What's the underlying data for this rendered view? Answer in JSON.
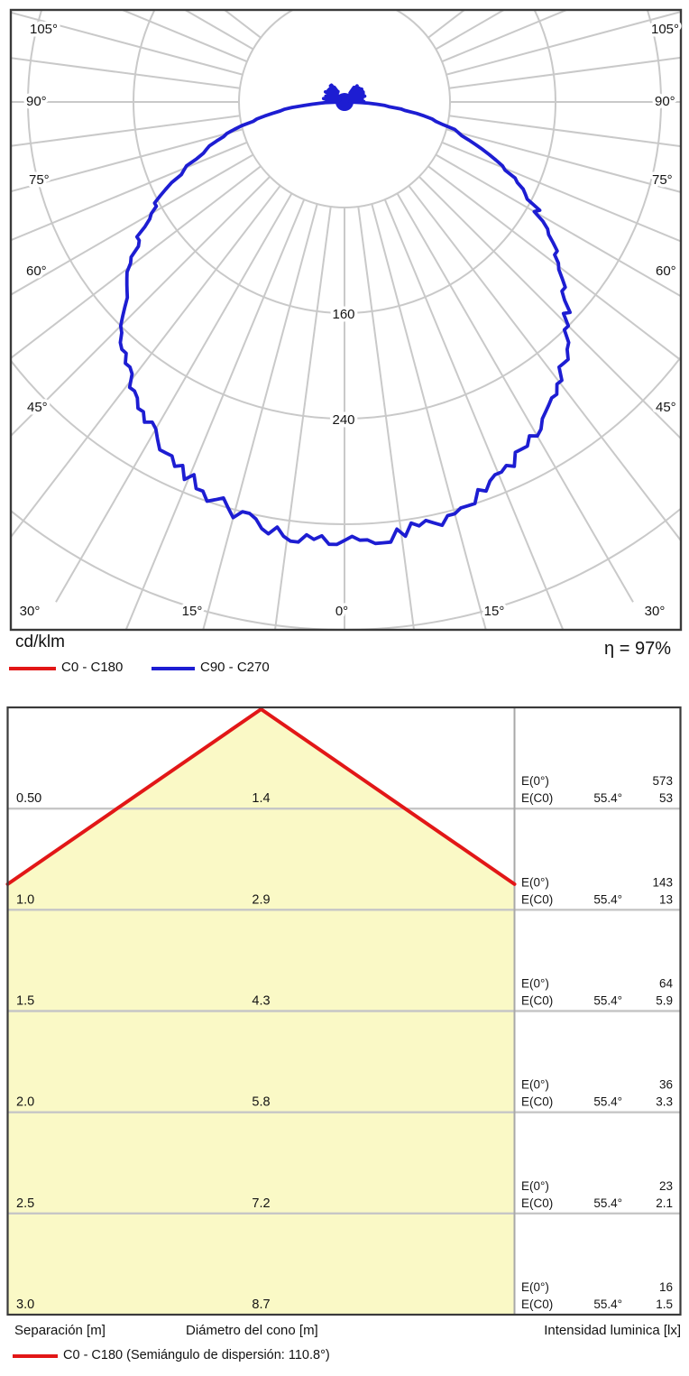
{
  "polar_section": {
    "unit_label": "cd/klm",
    "efficiency_label": "η = 97%",
    "legend": [
      {
        "label": "C0 - C180",
        "color": "#e21717"
      },
      {
        "label": "C90 - C270",
        "color": "#1d1dd2"
      }
    ],
    "angle_labels_left": [
      "105°",
      "90°",
      "75°",
      "60°",
      "45°"
    ],
    "angle_labels_right": [
      "105°",
      "90°",
      "75°",
      "60°",
      "45°"
    ],
    "angle_labels_bottom": [
      "30°",
      "15°",
      "0°",
      "15°",
      "30°"
    ],
    "ring_labels": [
      "160",
      "240"
    ]
  },
  "cone_section": {
    "column_headers": [
      "Separación [m]",
      "Diámetro del cono [m]",
      "Intensidad luminica [lx]"
    ],
    "legend_label": "C0 - C180 (Semiángulo de dispersión: 110.8°)",
    "legend_color": "#e21717"
  },
  "chart_data": [
    {
      "type": "line",
      "subtype": "photometric-polar-diagram",
      "title": "Luminous intensity distribution",
      "unit": "cd/klm",
      "efficiency_percent": 97,
      "angle_ticks_deg": [
        0,
        15,
        30,
        45,
        60,
        75,
        90,
        105
      ],
      "radial_gridlines_cd_klm": [
        80,
        160,
        240,
        320,
        400
      ],
      "labeled_radial_gridlines": [
        160,
        240
      ],
      "radial_gridline_step": 80,
      "series": [
        {
          "name": "C0 - C180",
          "color": "#e21717",
          "note": "coincident with C90 - C270 curve, not separately visible"
        },
        {
          "name": "C90 - C270",
          "color": "#1d1dd2",
          "peak_cd_klm": 333,
          "peak_angle_deg": 0,
          "shape": "cosine-like noisy measured curve, near-zero noise blob around 90°-180°"
        }
      ],
      "legend_position": "below-left",
      "grid": true
    },
    {
      "type": "table",
      "subtype": "cone-diagram",
      "beam_semiangle_deg": 110.8,
      "e0_label": "E(0°)",
      "ec0_label": "E(C0)",
      "ec0_angle_label": "55.4°",
      "columns": [
        "Separación [m]",
        "Diámetro del cono [m]",
        "Intensidad luminica [lx]"
      ],
      "rows": [
        {
          "separation_m": "0.50",
          "cone_diameter_m": "1.4",
          "e0_lx": "573",
          "ec0_lx": "53"
        },
        {
          "separation_m": "1.0",
          "cone_diameter_m": "2.9",
          "e0_lx": "143",
          "ec0_lx": "13"
        },
        {
          "separation_m": "1.5",
          "cone_diameter_m": "4.3",
          "e0_lx": "64",
          "ec0_lx": "5.9"
        },
        {
          "separation_m": "2.0",
          "cone_diameter_m": "5.8",
          "e0_lx": "36",
          "ec0_lx": "3.3"
        },
        {
          "separation_m": "2.5",
          "cone_diameter_m": "7.2",
          "e0_lx": "23",
          "ec0_lx": "2.1"
        },
        {
          "separation_m": "3.0",
          "cone_diameter_m": "8.7",
          "e0_lx": "16",
          "ec0_lx": "1.5"
        }
      ]
    }
  ],
  "colors": {
    "grid": "#c9c9c9",
    "border": "#3a3a3a",
    "cone_fill": "#faf9c6",
    "red": "#e21717",
    "blue": "#1d1dd2",
    "text": "#141414"
  }
}
